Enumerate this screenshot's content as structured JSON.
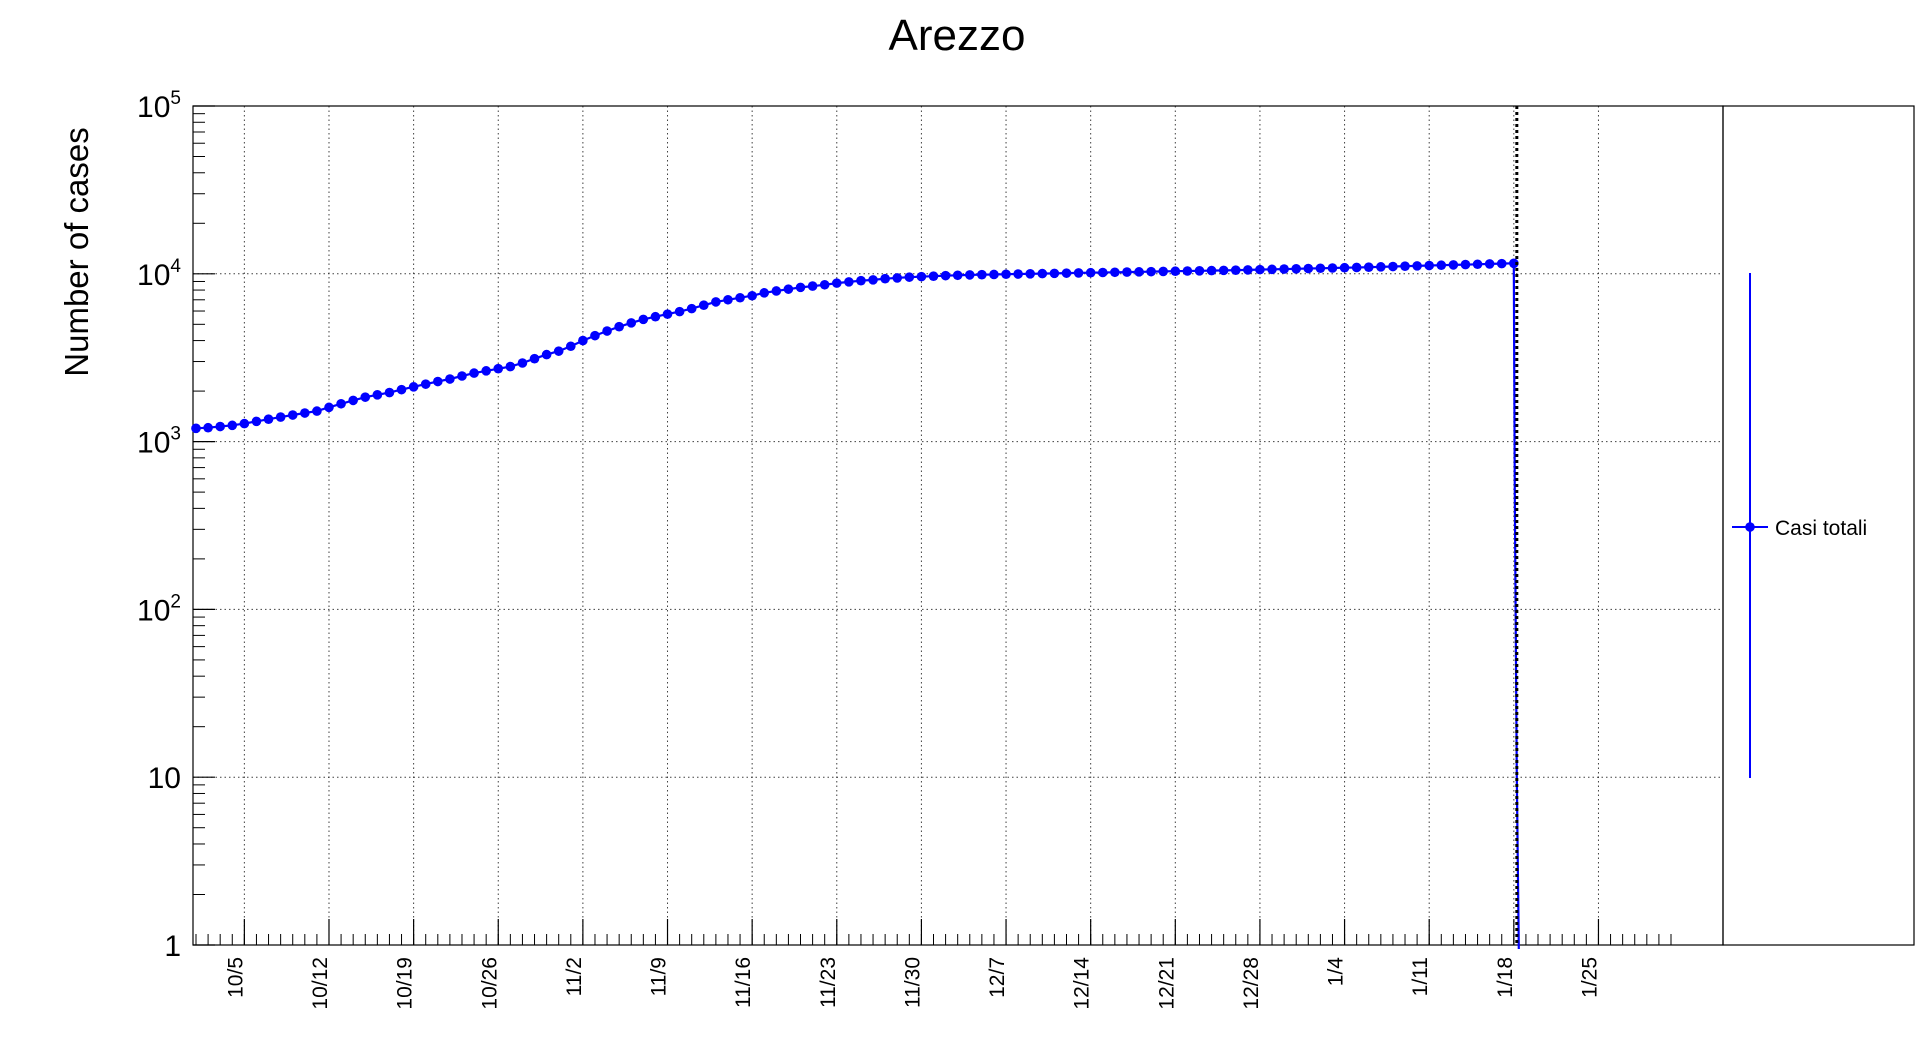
{
  "chart_data": {
    "type": "line",
    "title": "Arezzo",
    "xlabel": "",
    "ylabel": "Number of cases",
    "yscale": "log",
    "ylim": [
      1,
      100000
    ],
    "xlim": [
      "2020-10-01",
      "2021-01-31"
    ],
    "grid": true,
    "legend_position": "right",
    "x_tick_labels": [
      "10/5",
      "10/12",
      "10/19",
      "10/26",
      "11/2",
      "11/9",
      "11/16",
      "11/23",
      "11/30",
      "12/7",
      "12/14",
      "12/21",
      "12/28",
      "1/4",
      "1/11",
      "1/18",
      "1/25"
    ],
    "x_tick_dates": [
      "2020-10-05",
      "2020-10-12",
      "2020-10-19",
      "2020-10-26",
      "2020-11-02",
      "2020-11-09",
      "2020-11-16",
      "2020-11-23",
      "2020-11-30",
      "2020-12-07",
      "2020-12-14",
      "2020-12-21",
      "2020-12-28",
      "2021-01-04",
      "2021-01-11",
      "2021-01-18",
      "2021-01-25"
    ],
    "y_tick_labels": [
      {
        "value": 1,
        "base": "1",
        "exp": ""
      },
      {
        "value": 10,
        "base": "10",
        "exp": ""
      },
      {
        "value": 100,
        "base": "10",
        "exp": "2"
      },
      {
        "value": 1000,
        "base": "10",
        "exp": "3"
      },
      {
        "value": 10000,
        "base": "10",
        "exp": "4"
      },
      {
        "value": 100000,
        "base": "10",
        "exp": "5"
      }
    ],
    "vertical_line": {
      "date": "2021-01-18",
      "style": "dotted"
    },
    "series": [
      {
        "name": "Casi totali",
        "color": "#0000ff",
        "x": [
          "2020-10-01",
          "2020-10-02",
          "2020-10-03",
          "2020-10-04",
          "2020-10-05",
          "2020-10-06",
          "2020-10-07",
          "2020-10-08",
          "2020-10-09",
          "2020-10-10",
          "2020-10-11",
          "2020-10-12",
          "2020-10-13",
          "2020-10-14",
          "2020-10-15",
          "2020-10-16",
          "2020-10-17",
          "2020-10-18",
          "2020-10-19",
          "2020-10-20",
          "2020-10-21",
          "2020-10-22",
          "2020-10-23",
          "2020-10-24",
          "2020-10-25",
          "2020-10-26",
          "2020-10-27",
          "2020-10-28",
          "2020-10-29",
          "2020-10-30",
          "2020-10-31",
          "2020-11-01",
          "2020-11-02",
          "2020-11-03",
          "2020-11-04",
          "2020-11-05",
          "2020-11-06",
          "2020-11-07",
          "2020-11-08",
          "2020-11-09",
          "2020-11-10",
          "2020-11-11",
          "2020-11-12",
          "2020-11-13",
          "2020-11-14",
          "2020-11-15",
          "2020-11-16",
          "2020-11-17",
          "2020-11-18",
          "2020-11-19",
          "2020-11-20",
          "2020-11-21",
          "2020-11-22",
          "2020-11-23",
          "2020-11-24",
          "2020-11-25",
          "2020-11-26",
          "2020-11-27",
          "2020-11-28",
          "2020-11-29",
          "2020-11-30",
          "2020-12-01",
          "2020-12-02",
          "2020-12-03",
          "2020-12-04",
          "2020-12-05",
          "2020-12-06",
          "2020-12-07",
          "2020-12-08",
          "2020-12-09",
          "2020-12-10",
          "2020-12-11",
          "2020-12-12",
          "2020-12-13",
          "2020-12-14",
          "2020-12-15",
          "2020-12-16",
          "2020-12-17",
          "2020-12-18",
          "2020-12-19",
          "2020-12-20",
          "2020-12-21",
          "2020-12-22",
          "2020-12-23",
          "2020-12-24",
          "2020-12-25",
          "2020-12-26",
          "2020-12-27",
          "2020-12-28",
          "2020-12-29",
          "2020-12-30",
          "2020-12-31",
          "2021-01-01",
          "2021-01-02",
          "2021-01-03",
          "2021-01-04",
          "2021-01-05",
          "2021-01-06",
          "2021-01-07",
          "2021-01-08",
          "2021-01-09",
          "2021-01-10",
          "2021-01-11",
          "2021-01-12",
          "2021-01-13",
          "2021-01-14",
          "2021-01-15",
          "2021-01-16",
          "2021-01-17",
          "2021-01-18"
        ],
        "y": [
          1200,
          1210,
          1230,
          1250,
          1280,
          1320,
          1360,
          1400,
          1440,
          1480,
          1520,
          1600,
          1680,
          1760,
          1840,
          1900,
          1960,
          2040,
          2120,
          2200,
          2280,
          2360,
          2460,
          2560,
          2640,
          2720,
          2800,
          2940,
          3120,
          3300,
          3460,
          3700,
          4000,
          4280,
          4560,
          4840,
          5100,
          5350,
          5550,
          5750,
          5950,
          6200,
          6500,
          6800,
          7000,
          7200,
          7400,
          7700,
          7900,
          8100,
          8300,
          8450,
          8600,
          8800,
          8950,
          9100,
          9200,
          9350,
          9450,
          9550,
          9620,
          9680,
          9750,
          9800,
          9850,
          9880,
          9910,
          9940,
          9970,
          10000,
          10030,
          10060,
          10090,
          10120,
          10150,
          10180,
          10210,
          10240,
          10270,
          10300,
          10330,
          10360,
          10390,
          10420,
          10450,
          10480,
          10510,
          10550,
          10590,
          10630,
          10670,
          10710,
          10750,
          10790,
          10830,
          10870,
          10910,
          10950,
          11000,
          11050,
          11100,
          11150,
          11200,
          11250,
          11300,
          11350,
          11400,
          11450,
          11500,
          11550
        ]
      }
    ]
  }
}
